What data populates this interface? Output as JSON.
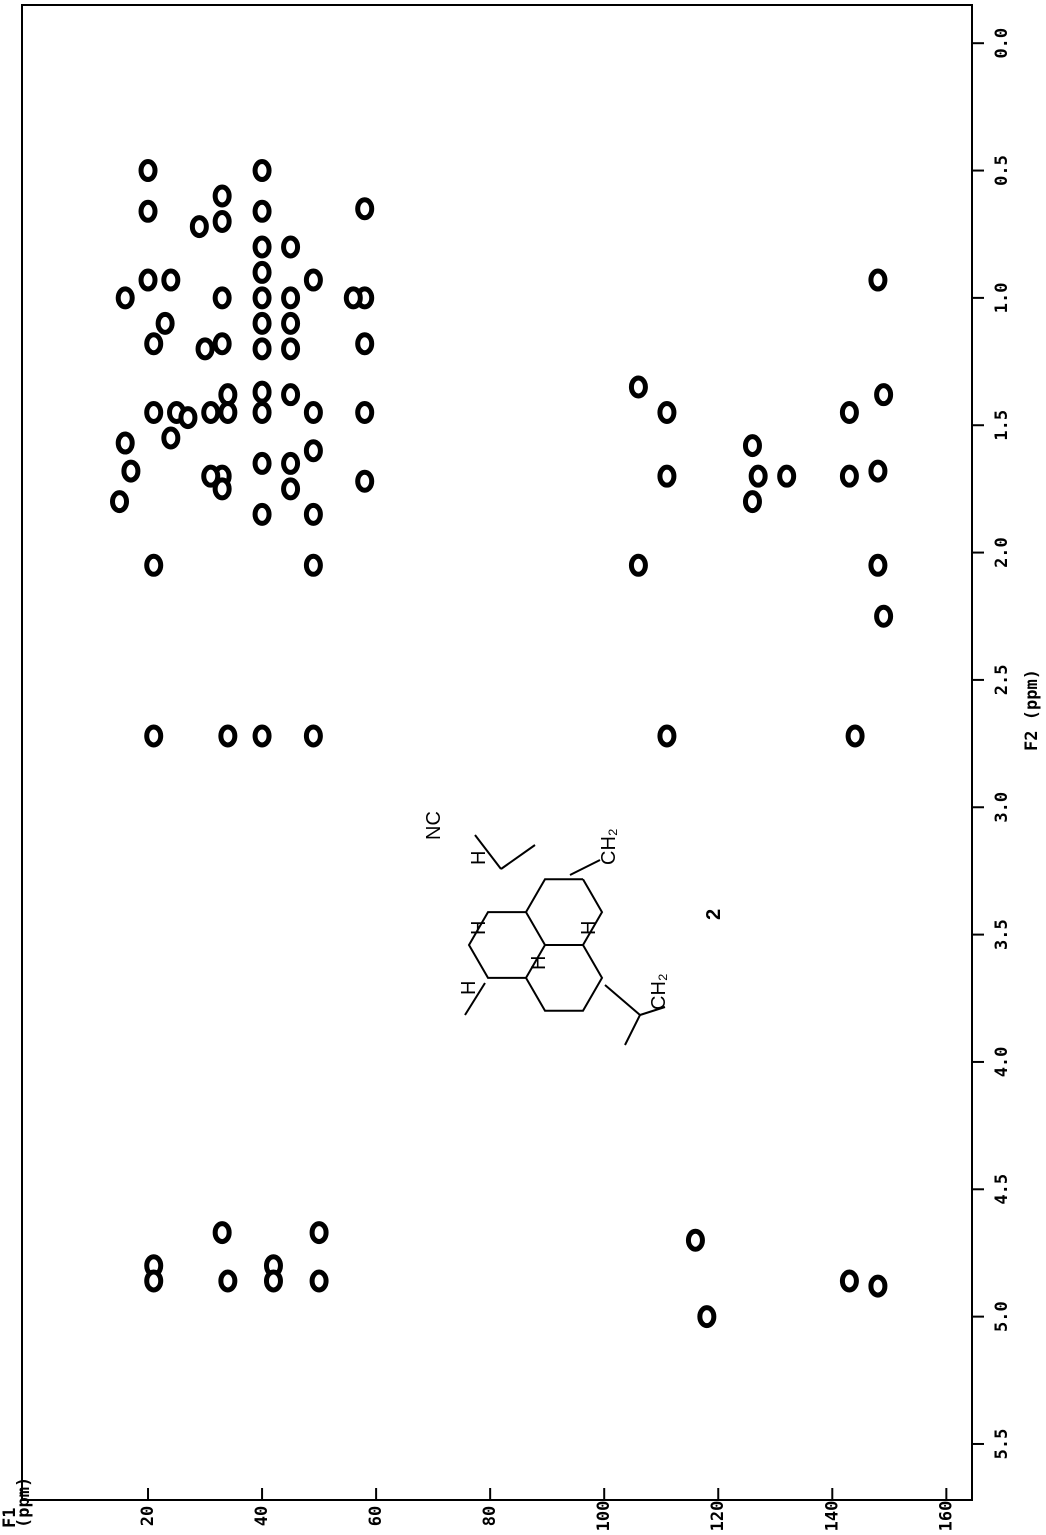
{
  "chart_data": {
    "type": "scatter",
    "xlabel_lines": [
      "F1",
      "(ppm)"
    ],
    "ylabel": "F2 (ppm)",
    "xlim": [
      -2.1,
      164.5
    ],
    "ylim": [
      -0.15,
      5.72
    ],
    "y_inverted": true,
    "y_axis_side": "right",
    "xticks": [
      20,
      40,
      60,
      80,
      100,
      120,
      140,
      160
    ],
    "yticks": [
      {
        "value": 0,
        "label": "0.0"
      },
      0.5,
      {
        "value": 1,
        "label": "1.0"
      },
      1.5,
      {
        "value": 2,
        "label": "2.0"
      },
      2.5,
      {
        "value": 3,
        "label": "3.0"
      },
      3.5,
      {
        "value": 4,
        "label": "4.0"
      },
      4.5,
      {
        "value": 5,
        "label": "5.0"
      },
      5.5
    ],
    "color": "#000000",
    "x": [
      20,
      20,
      20,
      21,
      21,
      21,
      21,
      21,
      21,
      16,
      15,
      17,
      16,
      25,
      24,
      23,
      24,
      27,
      33,
      33,
      33,
      34,
      33,
      33,
      33,
      34,
      34,
      34,
      33,
      31,
      31,
      30,
      29,
      40,
      40,
      40,
      40,
      40,
      40,
      40,
      40,
      40,
      40,
      40,
      40,
      42,
      42,
      45,
      45,
      45,
      45,
      45,
      45,
      45,
      49,
      49,
      49,
      49,
      49,
      49,
      50,
      50,
      58,
      58,
      58,
      58,
      58,
      56,
      106,
      106,
      111,
      111,
      111,
      116,
      118,
      126,
      127,
      132,
      126,
      143,
      143,
      144,
      143,
      148,
      149,
      148,
      148,
      149,
      148
    ],
    "values": [
      0.5,
      0.66,
      0.93,
      1.18,
      1.45,
      2.05,
      2.72,
      4.8,
      4.86,
      1.57,
      1.8,
      1.68,
      1.0,
      1.45,
      1.55,
      1.1,
      0.93,
      1.47,
      0.6,
      0.7,
      1.0,
      1.38,
      1.7,
      1.75,
      4.67,
      4.86,
      2.72,
      1.45,
      1.18,
      1.45,
      1.7,
      1.2,
      0.72,
      0.5,
      0.66,
      0.8,
      0.9,
      1.0,
      1.1,
      1.2,
      1.37,
      1.45,
      1.65,
      1.85,
      2.72,
      4.8,
      4.86,
      0.8,
      1.0,
      1.1,
      1.2,
      1.38,
      1.65,
      1.75,
      0.93,
      1.45,
      1.6,
      1.85,
      2.05,
      2.72,
      4.67,
      4.86,
      0.65,
      1.0,
      1.18,
      1.45,
      1.72,
      1.0,
      1.35,
      2.05,
      1.45,
      1.7,
      2.72,
      4.7,
      5.0,
      1.58,
      1.7,
      1.7,
      1.8,
      1.45,
      1.7,
      2.72,
      4.86,
      4.88,
      1.38,
      1.68,
      2.05,
      2.25,
      0.93
    ],
    "structure_labels": [
      "NC",
      "H",
      "H",
      "H",
      "H",
      "H",
      "CH₂",
      "CH₂"
    ],
    "compound_label": "2"
  }
}
